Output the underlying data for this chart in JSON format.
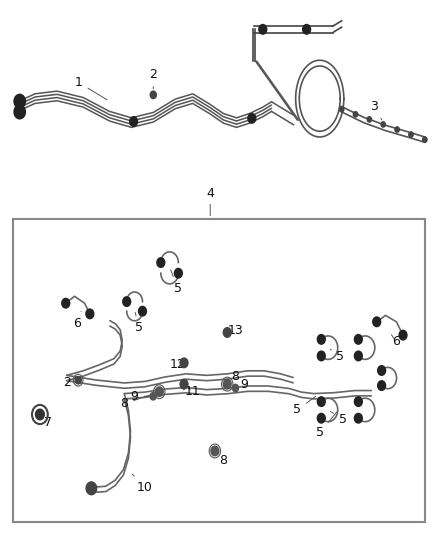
{
  "bg_color": "#ffffff",
  "line_color": "#555555",
  "dark_color": "#222222",
  "label_color": "#111111",
  "box_border_color": "#888888",
  "font_size_label": 9
}
